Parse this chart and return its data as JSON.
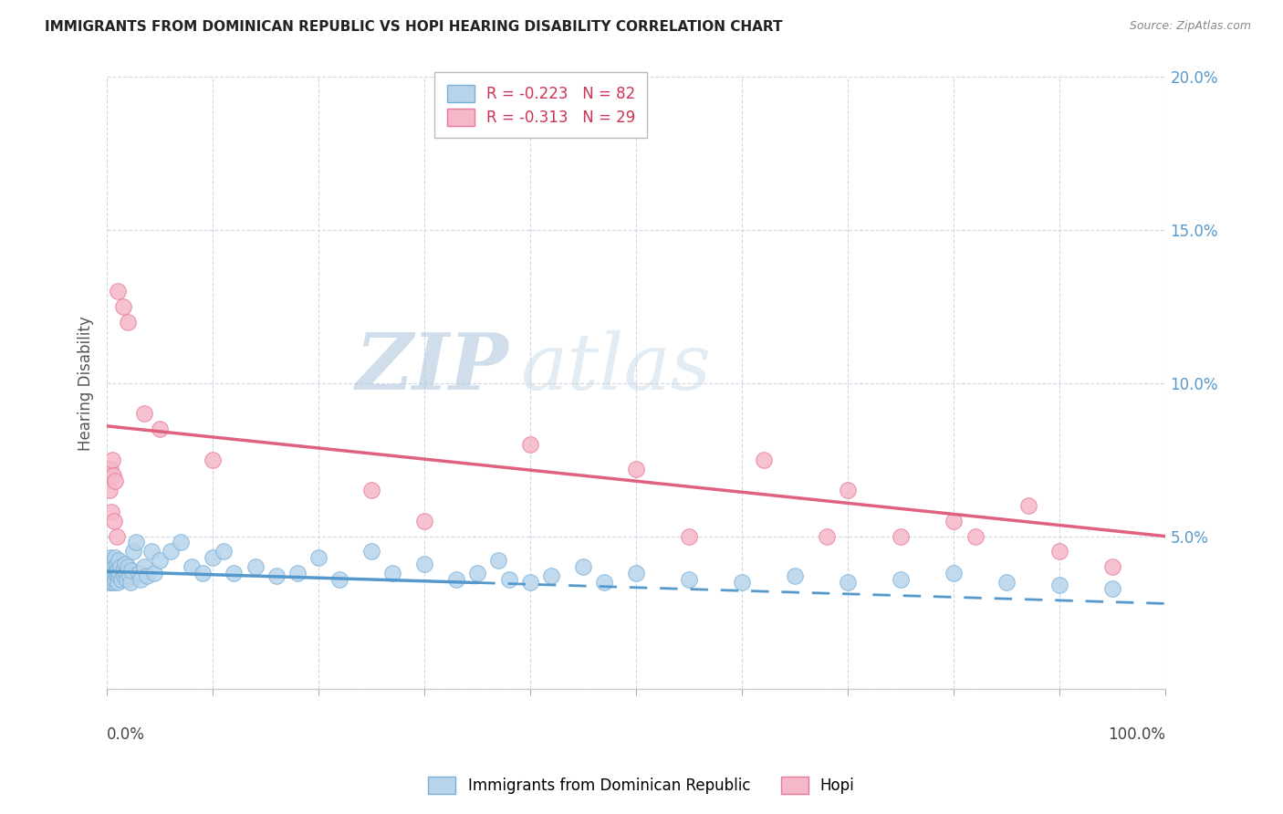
{
  "title": "IMMIGRANTS FROM DOMINICAN REPUBLIC VS HOPI HEARING DISABILITY CORRELATION CHART",
  "source": "Source: ZipAtlas.com",
  "ylabel": "Hearing Disability",
  "r_blue": -0.223,
  "n_blue": 82,
  "r_pink": -0.313,
  "n_pink": 29,
  "legend_label_blue": "Immigrants from Dominican Republic",
  "legend_label_pink": "Hopi",
  "blue_color": "#b8d4ea",
  "pink_color": "#f5b8c8",
  "blue_edge_color": "#7ab0d8",
  "pink_edge_color": "#e87898",
  "blue_line_color": "#5599cc",
  "pink_line_color": "#e06080",
  "watermark_zip": "ZIP",
  "watermark_atlas": "atlas",
  "blue_scatter_x": [
    0.1,
    0.15,
    0.2,
    0.2,
    0.25,
    0.3,
    0.3,
    0.35,
    0.4,
    0.4,
    0.45,
    0.5,
    0.5,
    0.55,
    0.6,
    0.65,
    0.7,
    0.7,
    0.75,
    0.8,
    0.8,
    0.85,
    0.9,
    0.95,
    1.0,
    1.0,
    1.1,
    1.1,
    1.2,
    1.3,
    1.4,
    1.5,
    1.6,
    1.7,
    1.8,
    1.9,
    2.0,
    2.1,
    2.2,
    2.3,
    2.5,
    2.7,
    3.0,
    3.2,
    3.5,
    3.8,
    4.2,
    4.5,
    5.0,
    6.0,
    7.0,
    8.0,
    9.0,
    10.0,
    11.0,
    12.0,
    14.0,
    16.0,
    18.0,
    20.0,
    22.0,
    25.0,
    27.0,
    30.0,
    33.0,
    35.0,
    37.0,
    38.0,
    40.0,
    42.0,
    45.0,
    47.0,
    50.0,
    55.0,
    60.0,
    65.0,
    70.0,
    75.0,
    80.0,
    85.0,
    90.0,
    95.0
  ],
  "blue_scatter_y": [
    3.8,
    4.0,
    3.5,
    4.2,
    3.7,
    3.9,
    4.3,
    3.6,
    4.0,
    3.5,
    3.8,
    4.1,
    3.6,
    3.9,
    3.7,
    4.2,
    3.5,
    4.0,
    3.8,
    3.6,
    4.3,
    3.9,
    3.7,
    4.1,
    3.5,
    3.9,
    4.2,
    3.7,
    3.8,
    4.0,
    3.6,
    3.9,
    3.7,
    4.1,
    3.8,
    3.6,
    4.0,
    3.7,
    3.5,
    3.9,
    4.5,
    4.8,
    3.8,
    3.6,
    4.0,
    3.7,
    4.5,
    3.8,
    4.2,
    4.5,
    4.8,
    4.0,
    3.8,
    4.3,
    4.5,
    3.8,
    4.0,
    3.7,
    3.8,
    4.3,
    3.6,
    4.5,
    3.8,
    4.1,
    3.6,
    3.8,
    4.2,
    3.6,
    3.5,
    3.7,
    4.0,
    3.5,
    3.8,
    3.6,
    3.5,
    3.7,
    3.5,
    3.6,
    3.8,
    3.5,
    3.4,
    3.3
  ],
  "pink_scatter_x": [
    0.1,
    0.2,
    0.3,
    0.4,
    0.5,
    0.6,
    0.7,
    0.8,
    0.9,
    1.0,
    1.5,
    2.0,
    3.5,
    5.0,
    10.0,
    25.0,
    30.0,
    40.0,
    50.0,
    55.0,
    62.0,
    68.0,
    70.0,
    75.0,
    80.0,
    82.0,
    87.0,
    90.0,
    95.0
  ],
  "pink_scatter_y": [
    7.0,
    6.5,
    7.2,
    5.8,
    7.5,
    7.0,
    5.5,
    6.8,
    5.0,
    13.0,
    12.5,
    12.0,
    9.0,
    8.5,
    7.5,
    6.5,
    5.5,
    8.0,
    7.2,
    5.0,
    7.5,
    5.0,
    6.5,
    5.0,
    5.5,
    5.0,
    6.0,
    4.5,
    4.0
  ],
  "blue_solid_end_x": 35.0,
  "blue_trend_start_y": 3.85,
  "blue_trend_end_y": 2.8,
  "pink_trend_start_y": 8.6,
  "pink_trend_end_y": 5.0,
  "xmin": 0,
  "xmax": 100,
  "ymin": 0,
  "ymax": 20
}
